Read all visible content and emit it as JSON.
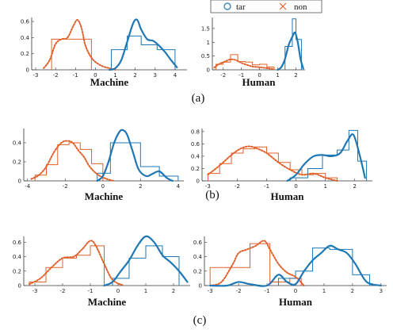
{
  "legend": {
    "entries": [
      {
        "label": "tar",
        "marker": "circle",
        "color": "#1f77b4"
      },
      {
        "label": "non",
        "marker": "x",
        "color": "#e0602a"
      }
    ]
  },
  "row_captions": [
    "(a)",
    "(b)",
    "(c)"
  ],
  "colors": {
    "tar": "#1f77b4",
    "non": "#e0602a"
  },
  "chart_data": [
    {
      "type": "histogram-density",
      "row": "(a)",
      "xlabel": "Machine",
      "xlim": [
        -3.2,
        4.6
      ],
      "ylim": [
        0,
        0.65
      ],
      "xticks": [
        -3,
        -2,
        -1,
        0,
        1,
        2,
        3,
        4
      ],
      "yticks": [
        0,
        0.2,
        0.4,
        0.6
      ],
      "ytick_labels": [
        "0",
        "0.2",
        "0.4",
        "0.6"
      ],
      "hist_non": {
        "edges": [
          -2.2,
          -1.5,
          -0.8,
          -0.2
        ],
        "values": [
          0.38,
          0.38,
          0.38
        ]
      },
      "hist_tar": {
        "edges": [
          0.8,
          1.6,
          2.3,
          3.1,
          4.0
        ],
        "values": [
          0.25,
          0.42,
          0.31,
          0.25
        ]
      },
      "kde_non": {
        "x": [
          -2.6,
          -2.3,
          -2.0,
          -1.7,
          -1.4,
          -1.1,
          -0.9,
          -0.7,
          -0.5,
          -0.2,
          0.1,
          0.4,
          0.7,
          1.0
        ],
        "y": [
          0.02,
          0.12,
          0.32,
          0.38,
          0.4,
          0.55,
          0.62,
          0.52,
          0.3,
          0.15,
          0.08,
          0.04,
          0.02,
          0.0
        ]
      },
      "kde_tar": {
        "x": [
          0.7,
          1.0,
          1.3,
          1.6,
          1.9,
          2.1,
          2.3,
          2.6,
          2.9,
          3.2,
          3.5,
          3.8,
          4.1
        ],
        "y": [
          0.0,
          0.02,
          0.12,
          0.35,
          0.58,
          0.62,
          0.5,
          0.38,
          0.36,
          0.3,
          0.22,
          0.12,
          0.03
        ]
      }
    },
    {
      "type": "histogram-density",
      "row": "(a)",
      "xlabel": "Human",
      "xlim": [
        -2.6,
        2.5
      ],
      "ylim": [
        0,
        1.9
      ],
      "xticks": [
        -2,
        -1,
        0,
        1,
        2
      ],
      "yticks": [
        0,
        0.5,
        1,
        1.5
      ],
      "ytick_labels": [
        "0",
        "0.5",
        "1",
        "1.5"
      ],
      "hist_non": {
        "edges": [
          -2.4,
          -2.0,
          -1.6,
          -1.2,
          -0.8,
          -0.4,
          0.0,
          0.4,
          0.8
        ],
        "values": [
          0.2,
          0.28,
          0.55,
          0.3,
          0.28,
          0.18,
          0.2,
          0.1
        ]
      },
      "hist_tar": {
        "edges": [
          1.4,
          1.8,
          2.0,
          2.3
        ],
        "values": [
          0.85,
          1.85,
          1.1
        ]
      },
      "kde_non": {
        "x": [
          -2.5,
          -2.2,
          -1.9,
          -1.6,
          -1.3,
          -1.0,
          -0.7,
          -0.4,
          -0.1,
          0.2,
          0.5,
          0.8
        ],
        "y": [
          0.08,
          0.22,
          0.3,
          0.38,
          0.35,
          0.25,
          0.18,
          0.12,
          0.1,
          0.08,
          0.05,
          0.02
        ]
      },
      "kde_tar": {
        "x": [
          1.0,
          1.2,
          1.4,
          1.6,
          1.8,
          1.95,
          2.1,
          2.25,
          2.4
        ],
        "y": [
          0.0,
          0.1,
          0.4,
          0.9,
          1.2,
          1.35,
          1.0,
          0.4,
          0.05
        ]
      }
    },
    {
      "type": "histogram-density",
      "row": "(b)",
      "xlabel": "Machine",
      "xlim": [
        -4.2,
        4.3
      ],
      "ylim": [
        0,
        0.55
      ],
      "xticks": [
        -4,
        -2,
        0,
        2,
        4
      ],
      "yticks": [
        0,
        0.2,
        0.4
      ],
      "ytick_labels": [
        "0",
        "0.2",
        "0.4"
      ],
      "hist_non": {
        "edges": [
          -3.6,
          -3.0,
          -2.4,
          -1.8,
          -1.2,
          -0.6,
          0.0
        ],
        "values": [
          0.06,
          0.17,
          0.38,
          0.4,
          0.33,
          0.18
        ]
      },
      "hist_tar": {
        "edges": [
          -0.3,
          0.4,
          1.0,
          2.0,
          3.0,
          4.0
        ],
        "values": [
          0.08,
          0.4,
          0.4,
          0.15,
          0.05
        ]
      },
      "kde_non": {
        "x": [
          -3.8,
          -3.4,
          -3.0,
          -2.6,
          -2.2,
          -1.9,
          -1.6,
          -1.3,
          -1.0,
          -0.7,
          -0.3,
          0.2,
          0.6
        ],
        "y": [
          0.02,
          0.06,
          0.15,
          0.3,
          0.4,
          0.42,
          0.4,
          0.32,
          0.25,
          0.15,
          0.07,
          0.02,
          0.0
        ]
      },
      "kde_tar": {
        "x": [
          -0.3,
          0.0,
          0.3,
          0.6,
          0.9,
          1.1,
          1.3,
          1.6,
          1.9,
          2.3,
          2.6,
          3.0,
          3.4,
          3.7
        ],
        "y": [
          0.0,
          0.05,
          0.2,
          0.4,
          0.52,
          0.53,
          0.48,
          0.3,
          0.12,
          0.05,
          0.07,
          0.1,
          0.03,
          0.0
        ]
      }
    },
    {
      "type": "histogram-density",
      "row": "(b)",
      "xlabel": "Human",
      "xlim": [
        -3.2,
        2.6
      ],
      "ylim": [
        0,
        0.85
      ],
      "xticks": [
        -3,
        -2,
        -1,
        0,
        1,
        2
      ],
      "yticks": [
        0,
        0.2,
        0.4,
        0.6,
        0.8
      ],
      "ytick_labels": [
        "0",
        "0.2",
        "0.4",
        "0.6",
        "0.8"
      ],
      "hist_non": {
        "edges": [
          -3.0,
          -2.6,
          -2.2,
          -1.8,
          -1.4,
          -1.0,
          -0.6,
          -0.2,
          0.2,
          0.6,
          1.0,
          1.4
        ],
        "values": [
          0.12,
          0.28,
          0.45,
          0.52,
          0.55,
          0.45,
          0.3,
          0.18,
          0.1,
          0.12,
          0.05
        ]
      },
      "hist_tar": {
        "edges": [
          -0.2,
          0.4,
          0.9,
          1.4,
          1.8,
          2.1,
          2.4
        ],
        "values": [
          0.05,
          0.2,
          0.42,
          0.5,
          0.82,
          0.32
        ]
      },
      "kde_non": {
        "x": [
          -3.0,
          -2.6,
          -2.2,
          -1.9,
          -1.6,
          -1.3,
          -1.0,
          -0.6,
          -0.2,
          0.2,
          0.6,
          1.0,
          1.4
        ],
        "y": [
          0.1,
          0.25,
          0.42,
          0.52,
          0.56,
          0.52,
          0.45,
          0.3,
          0.18,
          0.1,
          0.12,
          0.05,
          0.0
        ]
      },
      "kde_tar": {
        "x": [
          -0.3,
          0.0,
          0.3,
          0.6,
          0.9,
          1.2,
          1.5,
          1.75,
          1.95,
          2.15,
          2.35
        ],
        "y": [
          0.0,
          0.1,
          0.28,
          0.4,
          0.42,
          0.4,
          0.45,
          0.65,
          0.75,
          0.45,
          0.05
        ]
      }
    },
    {
      "type": "histogram-density",
      "row": "(c)",
      "xlabel": "Machine",
      "xlim": [
        -3.4,
        2.6
      ],
      "ylim": [
        0,
        0.68
      ],
      "xticks": [
        -3,
        -2,
        -1,
        0,
        1,
        2
      ],
      "yticks": [
        0,
        0.2,
        0.4,
        0.6
      ],
      "ytick_labels": [
        "0",
        "0.2",
        "0.4",
        "0.6"
      ],
      "hist_non": {
        "edges": [
          -3.2,
          -2.6,
          -2.0,
          -1.5,
          -1.0,
          -0.5
        ],
        "values": [
          0.05,
          0.25,
          0.38,
          0.42,
          0.55
        ]
      },
      "hist_tar": {
        "edges": [
          -0.2,
          0.4,
          1.0,
          1.6,
          2.2
        ],
        "values": [
          0.1,
          0.38,
          0.55,
          0.4
        ]
      },
      "kde_non": {
        "x": [
          -3.2,
          -2.8,
          -2.4,
          -2.0,
          -1.6,
          -1.3,
          -1.0,
          -0.8,
          -0.5,
          -0.2,
          0.2
        ],
        "y": [
          0.02,
          0.1,
          0.25,
          0.38,
          0.4,
          0.5,
          0.62,
          0.55,
          0.3,
          0.08,
          0.0
        ]
      },
      "kde_tar": {
        "x": [
          -0.5,
          -0.2,
          0.1,
          0.4,
          0.7,
          1.0,
          1.3,
          1.6,
          1.9,
          2.2,
          2.5
        ],
        "y": [
          0.0,
          0.05,
          0.2,
          0.35,
          0.55,
          0.68,
          0.6,
          0.42,
          0.32,
          0.2,
          0.05
        ]
      }
    },
    {
      "type": "histogram-density",
      "row": "(c)",
      "xlabel": "Human",
      "xlim": [
        -3.2,
        3.2
      ],
      "ylim": [
        0,
        0.68
      ],
      "xticks": [
        -3,
        -2,
        -1,
        0,
        1,
        2,
        3
      ],
      "yticks": [
        0,
        0.2,
        0.4,
        0.6
      ],
      "ytick_labels": [
        "0",
        "0.2",
        "0.4",
        "0.6"
      ],
      "hist_non": {
        "edges": [
          -3.0,
          -2.3,
          -1.6,
          -0.9,
          -0.2,
          0.2
        ],
        "values": [
          0.25,
          0.25,
          0.58,
          0.05,
          0.1
        ]
      },
      "hist_tar": {
        "edges": [
          -0.6,
          0.0,
          0.6,
          1.2,
          2.0,
          2.6
        ],
        "values": [
          0.1,
          0.2,
          0.52,
          0.5,
          0.15
        ]
      },
      "kde_non": {
        "x": [
          -3.0,
          -2.6,
          -2.2,
          -2.0,
          -1.7,
          -1.4,
          -1.1,
          -0.9,
          -0.6,
          -0.3,
          0.0,
          0.3
        ],
        "y": [
          0.0,
          0.05,
          0.3,
          0.45,
          0.5,
          0.55,
          0.62,
          0.5,
          0.3,
          0.18,
          0.12,
          0.0
        ]
      },
      "kde_tar": {
        "x": [
          -3.0,
          -2.4,
          -2.0,
          -1.6,
          -1.0,
          -0.6,
          -0.3,
          0.0,
          0.3,
          0.6,
          0.9,
          1.2,
          1.5,
          1.8,
          2.1,
          2.5,
          3.0
        ],
        "y": [
          0.0,
          0.0,
          0.05,
          0.02,
          0.0,
          0.15,
          0.05,
          0.02,
          0.2,
          0.35,
          0.45,
          0.55,
          0.5,
          0.45,
          0.3,
          0.05,
          0.0
        ]
      }
    }
  ]
}
